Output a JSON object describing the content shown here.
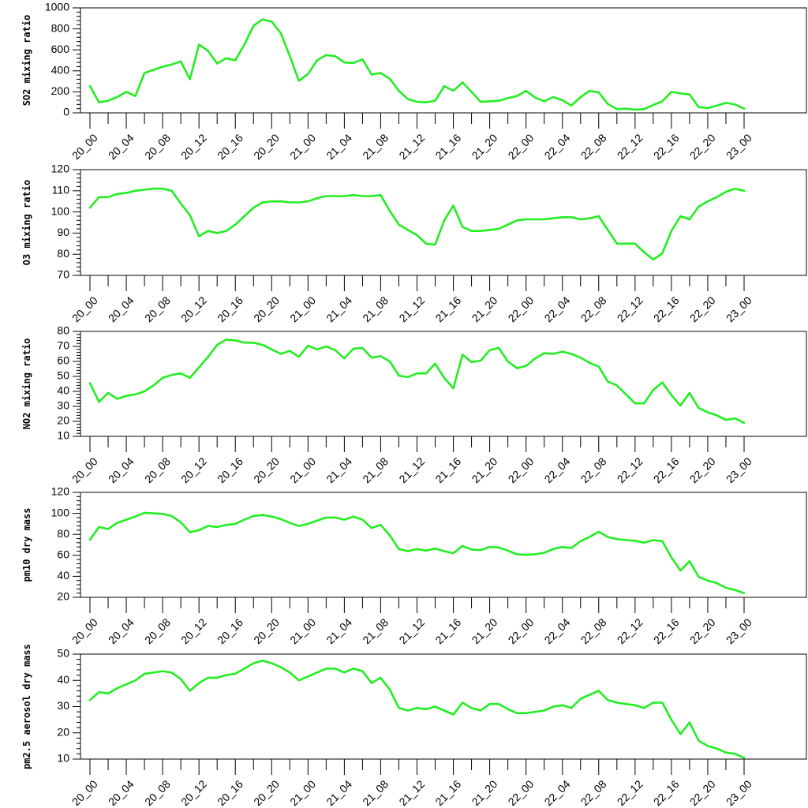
{
  "chart_data": [
    {
      "type": "line",
      "ylabel": "SO2 mixing ratio",
      "ylim": [
        0,
        1000
      ],
      "yticks": [
        0,
        200,
        400,
        600,
        800,
        1000
      ],
      "x_tick_labels": [
        "20_00",
        "20_04",
        "20_08",
        "20_12",
        "20_16",
        "20_20",
        "21_00",
        "21_04",
        "21_08",
        "21_12",
        "21_16",
        "21_20",
        "22_00",
        "22_04",
        "22_08",
        "22_12",
        "22_16",
        "22_20",
        "23_00"
      ],
      "color": "#22ee22",
      "values": [
        255,
        100,
        115,
        150,
        200,
        160,
        380,
        410,
        440,
        460,
        490,
        320,
        650,
        590,
        470,
        520,
        500,
        650,
        830,
        890,
        870,
        760,
        540,
        305,
        370,
        500,
        550,
        540,
        480,
        475,
        510,
        365,
        380,
        325,
        210,
        130,
        105,
        100,
        115,
        255,
        210,
        290,
        200,
        105,
        110,
        115,
        140,
        160,
        210,
        145,
        110,
        150,
        120,
        70,
        150,
        210,
        195,
        85,
        35,
        40,
        30,
        35,
        75,
        110,
        200,
        185,
        175,
        55,
        45,
        70,
        95,
        80,
        40
      ]
    },
    {
      "type": "line",
      "ylabel": "O3 mixing ratio",
      "ylim": [
        70,
        120
      ],
      "yticks": [
        70,
        80,
        90,
        100,
        110,
        120
      ],
      "x_tick_labels": [
        "20_00",
        "20_04",
        "20_08",
        "20_12",
        "20_16",
        "20_20",
        "21_00",
        "21_04",
        "21_08",
        "21_12",
        "21_16",
        "21_20",
        "22_00",
        "22_04",
        "22_08",
        "22_12",
        "22_16",
        "22_20",
        "23_00"
      ],
      "color": "#22ee22",
      "values": [
        102,
        107,
        107,
        108.5,
        109,
        110,
        110.5,
        111,
        111,
        110,
        104,
        98.5,
        88.5,
        91,
        90,
        91,
        94,
        98,
        102,
        104.5,
        105,
        105,
        104.5,
        104.5,
        105,
        106.5,
        107.5,
        107.5,
        107.5,
        108,
        107.5,
        107.5,
        108,
        100.5,
        94,
        91.5,
        89,
        85,
        84.5,
        96,
        103,
        93,
        91,
        91,
        91.5,
        92,
        94,
        96,
        96.5,
        96.5,
        96.5,
        97,
        97.5,
        97.5,
        96.5,
        97,
        98,
        91.5,
        85,
        85,
        85,
        81,
        77.5,
        80.5,
        91,
        98,
        96.5,
        102.5,
        105,
        107,
        109.5,
        111,
        110
      ]
    },
    {
      "type": "line",
      "ylabel": "NO2 mixing ratio",
      "ylim": [
        10,
        80
      ],
      "yticks": [
        10,
        20,
        30,
        40,
        50,
        60,
        70,
        80
      ],
      "x_tick_labels": [
        "20_00",
        "20_04",
        "20_08",
        "20_12",
        "20_16",
        "20_20",
        "21_00",
        "21_04",
        "21_08",
        "21_12",
        "21_16",
        "21_20",
        "22_00",
        "22_04",
        "22_08",
        "22_12",
        "22_16",
        "22_20",
        "23_00"
      ],
      "color": "#22ee22",
      "values": [
        45.5,
        33,
        39,
        35,
        37,
        38,
        40,
        44,
        49,
        51,
        52,
        49,
        56,
        63,
        71,
        74.5,
        74,
        72.5,
        72.5,
        71,
        68,
        65,
        67,
        63,
        70.5,
        68,
        70,
        67.5,
        62,
        68.5,
        69,
        62.5,
        63.5,
        60,
        50.5,
        49.5,
        52,
        52,
        58.5,
        49,
        42,
        64.5,
        59.5,
        60.5,
        67.5,
        69,
        60,
        55.5,
        57,
        62,
        65.5,
        65,
        66.5,
        65,
        62.5,
        59,
        56.5,
        46.5,
        44,
        38,
        32,
        32,
        41,
        46,
        37.5,
        30.5,
        39,
        29,
        26,
        24,
        21,
        22,
        19
      ]
    },
    {
      "type": "line",
      "ylabel": "pm10 dry mass",
      "ylim": [
        20,
        120
      ],
      "yticks": [
        20,
        40,
        60,
        80,
        100,
        120
      ],
      "x_tick_labels": [
        "20_00",
        "20_04",
        "20_08",
        "20_12",
        "20_16",
        "20_20",
        "21_00",
        "21_04",
        "21_08",
        "21_12",
        "21_16",
        "21_20",
        "22_00",
        "22_04",
        "22_08",
        "22_12",
        "22_16",
        "22_20",
        "23_00"
      ],
      "color": "#22ee22",
      "values": [
        75,
        87,
        85,
        91,
        94,
        97,
        100.5,
        100,
        99.5,
        97.5,
        91.5,
        82,
        84,
        88,
        87,
        89,
        90,
        94,
        97.5,
        98.5,
        97,
        94.5,
        91,
        88,
        90,
        93,
        96,
        96,
        94,
        97,
        94,
        86,
        89,
        79,
        66,
        64,
        66,
        64.5,
        66.5,
        64,
        62,
        69,
        65.5,
        65,
        68,
        67.5,
        64.5,
        61,
        60.5,
        61,
        62.5,
        66,
        68,
        67,
        73.5,
        77.5,
        82.5,
        77.5,
        75.5,
        74.5,
        74,
        72,
        74.5,
        73.5,
        58,
        45.5,
        54.5,
        39.5,
        36,
        33.5,
        29,
        27,
        24
      ]
    },
    {
      "type": "line",
      "ylabel": "pm2.5 aerosol dry mass",
      "ylim": [
        10,
        50
      ],
      "yticks": [
        10,
        20,
        30,
        40,
        50
      ],
      "x_tick_labels": [
        "20_00",
        "20_04",
        "20_08",
        "20_12",
        "20_16",
        "20_20",
        "21_00",
        "21_04",
        "21_08",
        "21_12",
        "21_16",
        "21_20",
        "22_00",
        "22_04",
        "22_08",
        "22_12",
        "22_16",
        "22_20",
        "23_00"
      ],
      "color": "#22ee22",
      "values": [
        32.5,
        35.5,
        35,
        37,
        38.5,
        40,
        42.5,
        43,
        43.5,
        43,
        40.5,
        36,
        39,
        41,
        41,
        42,
        42.5,
        44.5,
        46.5,
        47.5,
        46.5,
        45,
        43,
        40,
        41.5,
        43,
        44.5,
        44.5,
        43,
        44.5,
        43.5,
        39,
        41,
        36.5,
        29.5,
        28.5,
        29.5,
        29,
        30,
        28.5,
        27,
        31.5,
        29.5,
        28.5,
        31,
        31,
        29,
        27.5,
        27.5,
        28,
        28.5,
        30,
        30.5,
        29.5,
        33,
        34.5,
        36,
        32.5,
        31.5,
        31,
        30.5,
        29.5,
        31.5,
        31.5,
        25,
        19.5,
        24,
        17,
        15,
        14,
        12.5,
        12,
        10.5
      ]
    }
  ]
}
